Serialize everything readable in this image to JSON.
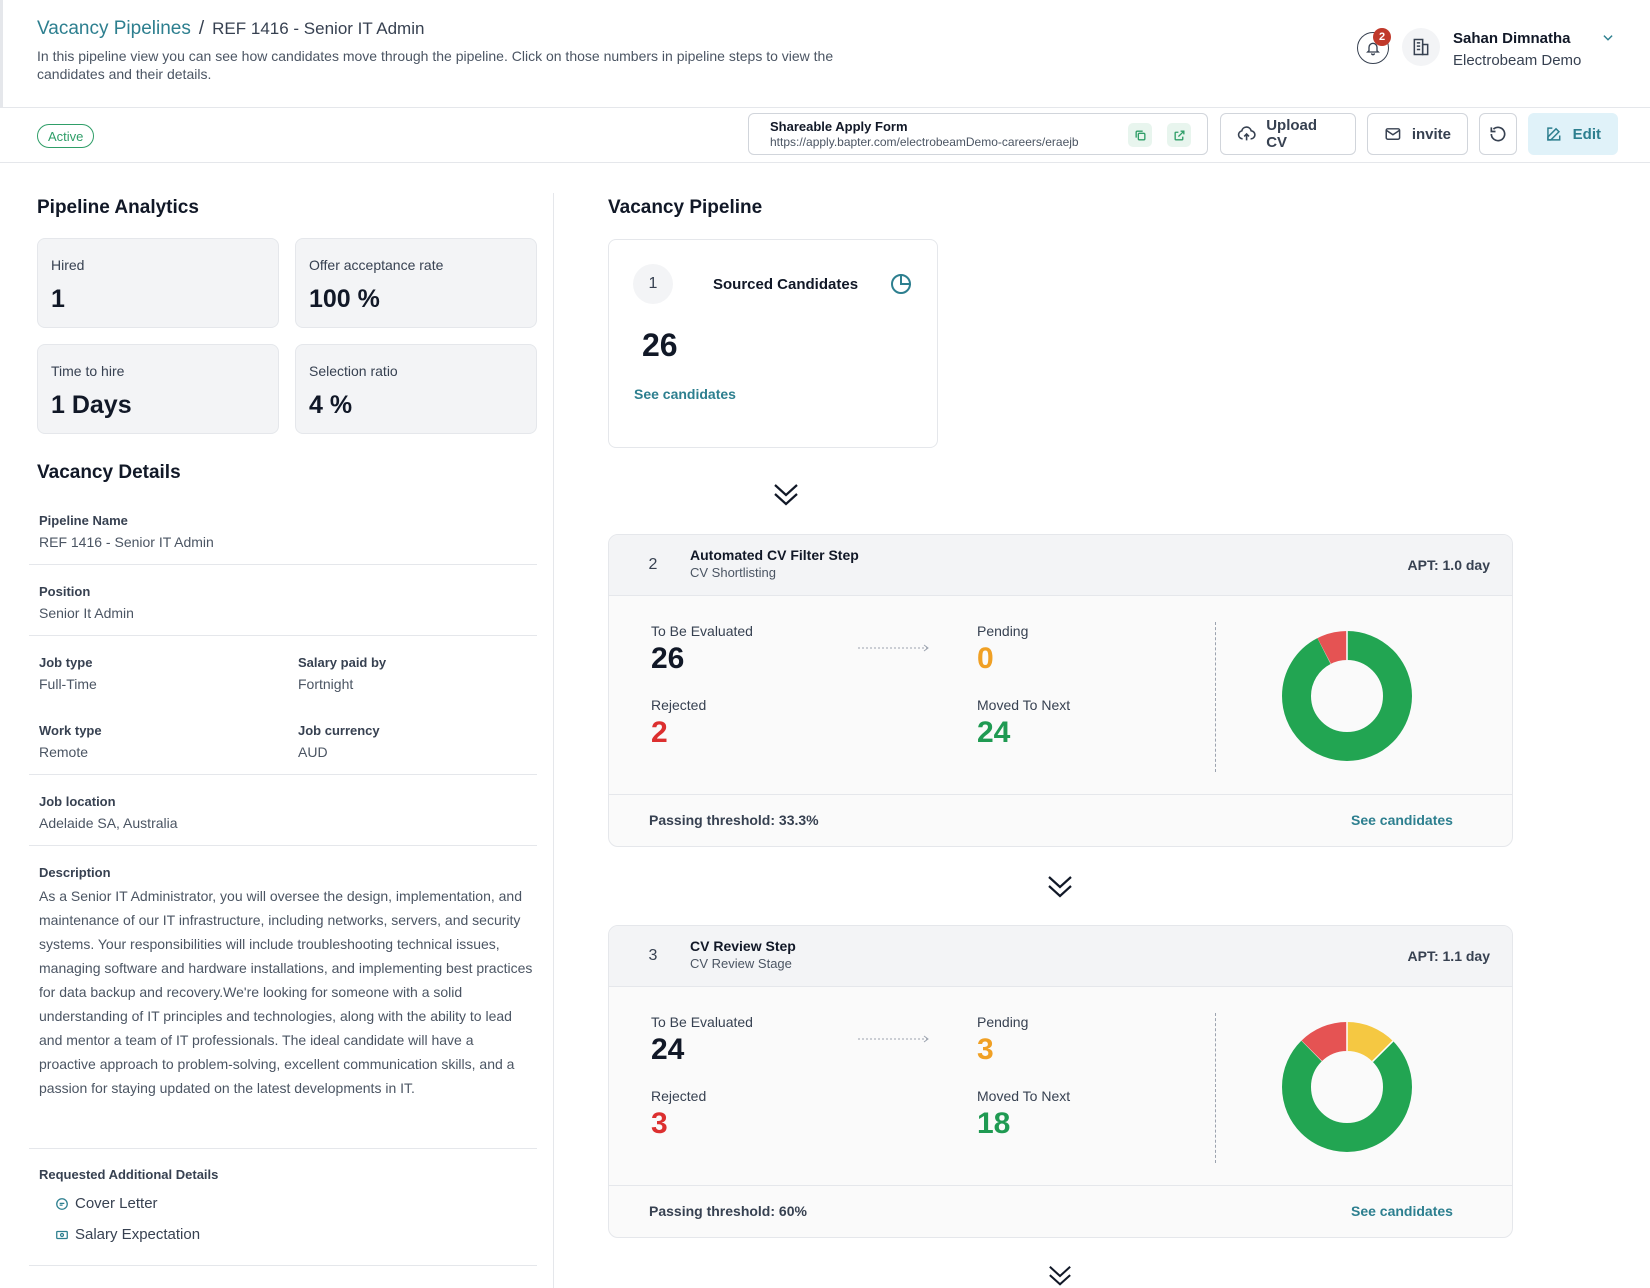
{
  "header": {
    "breadcrumb_link": "Vacancy Pipelines",
    "breadcrumb_sep": "/",
    "breadcrumb_current": "REF 1416 - Senior IT Admin",
    "description": "In this pipeline view you can see how candidates move through the pipeline. Click on those numbers in pipeline steps to view the candidates and their details.",
    "notification_count": "2",
    "user_name": "Sahan Dimnatha",
    "user_org": "Electrobeam Demo"
  },
  "toolbar": {
    "status": "Active",
    "apply_form_title": "Shareable Apply Form",
    "apply_form_url": "https://apply.bapter.com/electrobeamDemo-careers/eraejb",
    "upload_label": "Upload CV",
    "invite_label": "invite",
    "edit_label": "Edit"
  },
  "analytics": {
    "title": "Pipeline Analytics",
    "cards": [
      {
        "label": "Hired",
        "value": "1"
      },
      {
        "label": "Offer acceptance rate",
        "value": "100 %"
      },
      {
        "label": "Time to hire",
        "value": "1 Days"
      },
      {
        "label": "Selection ratio",
        "value": "4 %"
      }
    ]
  },
  "details": {
    "title": "Vacancy Details",
    "pipeline_name_label": "Pipeline Name",
    "pipeline_name": "REF 1416 - Senior IT Admin",
    "position_label": "Position",
    "position": "Senior It Admin",
    "job_type_label": "Job type",
    "job_type": "Full-Time",
    "salary_paid_label": "Salary paid by",
    "salary_paid": "Fortnight",
    "work_type_label": "Work type",
    "work_type": "Remote",
    "currency_label": "Job currency",
    "currency": "AUD",
    "location_label": "Job location",
    "location": "Adelaide SA, Australia",
    "description_label": "Description",
    "description": "As a Senior IT Administrator, you will oversee the design, implementation, and maintenance of our IT infrastructure, including networks, servers, and security systems. Your responsibilities will include troubleshooting technical issues, managing software and hardware installations, and implementing best practices for data backup and recovery.We're looking for someone with a solid understanding of IT principles and technologies, along with the ability to lead and mentor a team of IT professionals. The ideal candidate will have a proactive approach to problem-solving, excellent communication skills, and a passion for staying updated on the latest developments in IT.",
    "additional_label": "Requested Additional Details",
    "additional": [
      "Cover Letter",
      "Salary Expectation"
    ]
  },
  "pipeline": {
    "title": "Vacancy Pipeline",
    "source": {
      "number": "1",
      "title": "Sourced Candidates",
      "count": "26",
      "link": "See candidates"
    },
    "steps": [
      {
        "number": "2",
        "title": "Automated CV Filter Step",
        "subtitle": "CV Shortlisting",
        "apt": "APT: 1.0 day",
        "to_be_evaluated_label": "To Be Evaluated",
        "to_be_evaluated": "26",
        "pending_label": "Pending",
        "pending": "0",
        "rejected_label": "Rejected",
        "rejected": "2",
        "moved_label": "Moved To Next",
        "moved": "24",
        "threshold": "Passing threshold: 33.3%",
        "link": "See candidates",
        "donut": {
          "moved": 24,
          "rejected": 2,
          "pending": 0
        }
      },
      {
        "number": "3",
        "title": "CV Review Step",
        "subtitle": "CV Review Stage",
        "apt": "APT: 1.1 day",
        "to_be_evaluated_label": "To Be Evaluated",
        "to_be_evaluated": "24",
        "pending_label": "Pending",
        "pending": "3",
        "rejected_label": "Rejected",
        "rejected": "3",
        "moved_label": "Moved To Next",
        "moved": "18",
        "threshold": "Passing threshold: 60%",
        "link": "See candidates",
        "donut": {
          "moved": 18,
          "rejected": 3,
          "pending": 3
        }
      }
    ]
  },
  "colors": {
    "accent": "#2d7f8f",
    "moved": "#22a552",
    "rejected": "#e55353",
    "pending": "#f5c842"
  }
}
